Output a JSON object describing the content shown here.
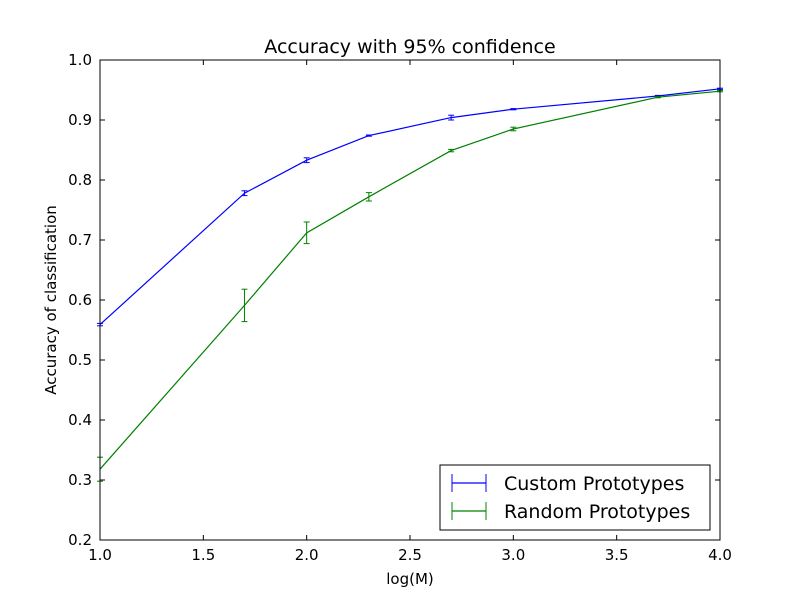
{
  "chart_data": {
    "type": "line",
    "title": "Accuracy with 95% confidence",
    "xlabel": "log(M)",
    "ylabel": "Accuracy of classification",
    "xlim": [
      1.0,
      4.0
    ],
    "ylim": [
      0.2,
      1.0
    ],
    "xticks": [
      "1.0",
      "1.5",
      "2.0",
      "2.5",
      "3.0",
      "3.5",
      "4.0"
    ],
    "yticks": [
      "0.2",
      "0.3",
      "0.4",
      "0.5",
      "0.6",
      "0.7",
      "0.8",
      "0.9",
      "1.0"
    ],
    "grid": false,
    "legend_position": "bottom-right",
    "series": [
      {
        "name": "Custom Prototypes",
        "color": "#0000ff",
        "x": [
          1.0,
          1.699,
          2.0,
          2.301,
          2.699,
          3.0,
          3.699,
          4.0
        ],
        "y": [
          0.559,
          0.778,
          0.833,
          0.874,
          0.904,
          0.918,
          0.94,
          0.952
        ],
        "err": [
          0.002,
          0.004,
          0.004,
          0.001,
          0.004,
          0.001,
          0.001,
          0.001
        ]
      },
      {
        "name": "Random Prototypes",
        "color": "#008000",
        "x": [
          1.0,
          1.699,
          2.0,
          2.301,
          2.699,
          3.0,
          3.699,
          4.0
        ],
        "y": [
          0.318,
          0.591,
          0.712,
          0.772,
          0.849,
          0.885,
          0.938,
          0.948
        ],
        "err": [
          0.02,
          0.027,
          0.018,
          0.007,
          0.002,
          0.003,
          0.001,
          0.001
        ]
      }
    ]
  }
}
